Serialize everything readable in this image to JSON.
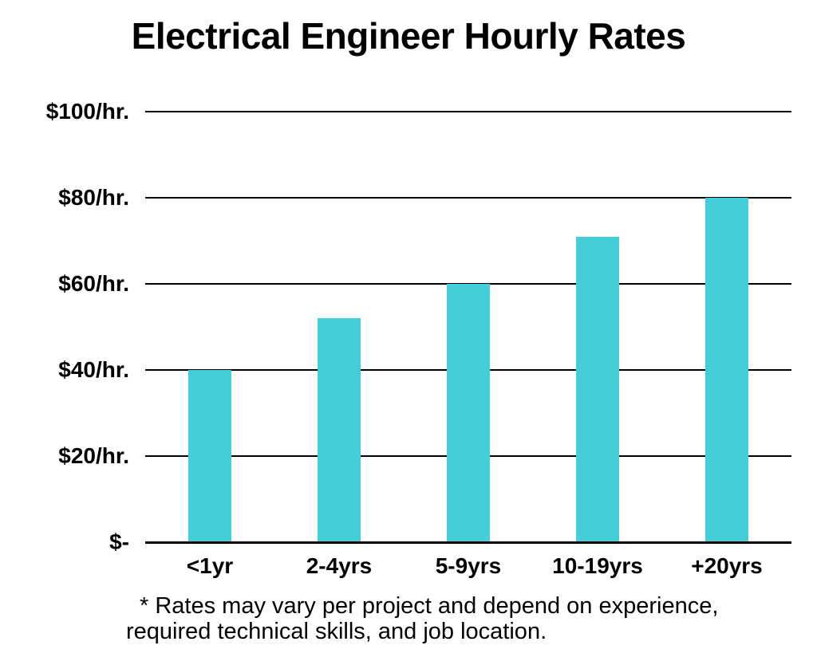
{
  "title": "Electrical Engineer Hourly Rates",
  "footnote": {
    "line1": "* Rates may vary per project and depend on experience,",
    "line2": "required technical skills, and job location."
  },
  "colors": {
    "bar": "#45CDD8",
    "axis_line": "#000000",
    "text": "#000000",
    "background": "#FFFFFF"
  },
  "chart_data": {
    "type": "bar",
    "title": "Electrical Engineer Hourly Rates",
    "categories": [
      "<1yr",
      "2-4yrs",
      "5-9yrs",
      "10-19yrs",
      "+20yrs"
    ],
    "values": [
      40,
      52,
      60,
      71,
      80
    ],
    "xlabel": "",
    "ylabel": "",
    "ylim": [
      0,
      100
    ],
    "y_ticks": [
      100,
      80,
      60,
      40,
      20,
      0
    ],
    "y_tick_labels": [
      "$100/hr.",
      "$80/hr.",
      "$60/hr.",
      "$40/hr.",
      "$20/hr.",
      "$-"
    ],
    "grid": true,
    "legend": false,
    "bar_color": "#45CDD8",
    "annotation": "* Rates may vary per project and depend on experience, required technical skills, and job location."
  }
}
